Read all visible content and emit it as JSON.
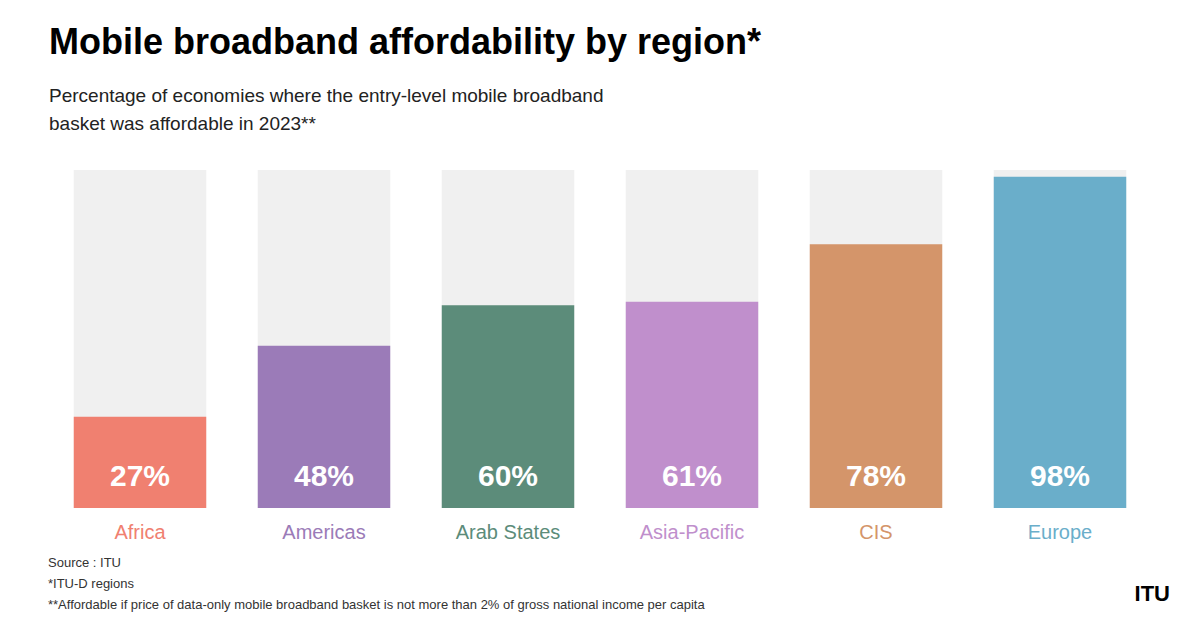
{
  "chart_data": {
    "type": "bar",
    "title": "Mobile broadband affordability by region*",
    "subtitle": "Percentage of economies where the entry-level mobile broadband\nbasket was affordable in 2023**",
    "categories": [
      "Africa",
      "Americas",
      "Arab States",
      "Asia-Pacific",
      "CIS",
      "Europe"
    ],
    "values": [
      27,
      48,
      60,
      61,
      78,
      98
    ],
    "value_labels": [
      "27%",
      "48%",
      "60%",
      "61%",
      "78%",
      "98%"
    ],
    "data_labels": true,
    "colors": [
      "#F08070",
      "#9B7BB8",
      "#5C8C7A",
      "#C08FCC",
      "#D4956A",
      "#6AAECA"
    ],
    "ylim": [
      0,
      100
    ],
    "tick_labels": "x",
    "grid": false,
    "annotations": [
      "Source : ITU",
      "*ITU-D regions",
      "**Affordable if price of data-only mobile broadband basket is not more than 2% of gross national income per capita",
      "ITU"
    ]
  }
}
